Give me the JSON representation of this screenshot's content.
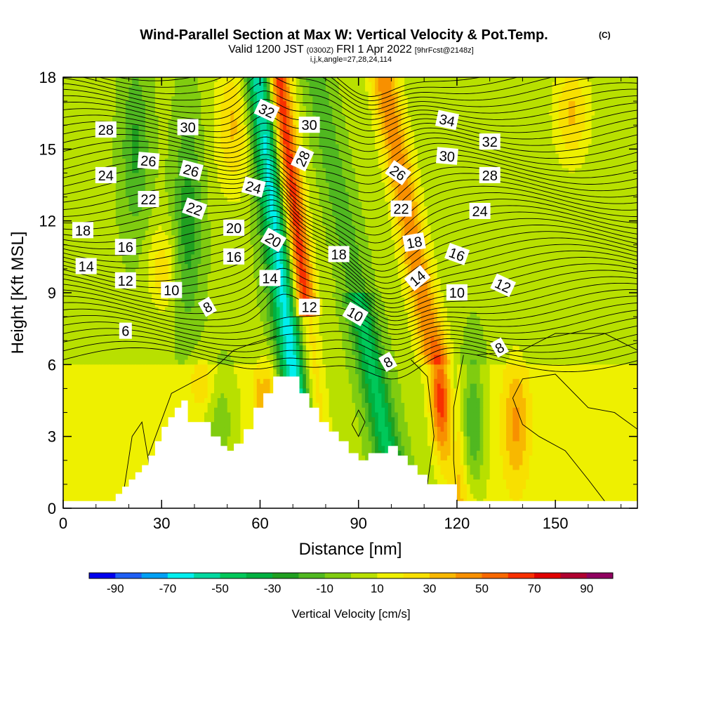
{
  "title": {
    "main": "Wind-Parallel Section at Max W: Vertical Velocity & Pot.Temp.",
    "copyright": "(C)",
    "valid_prefix": "Valid 1200 JST",
    "valid_utc": "(0300Z)",
    "valid_date": "FRI 1 Apr 2022",
    "forecast": "[9hrFcst@2148z]",
    "indices": "i,j,k,angle=27,28,24,114"
  },
  "chart_data": {
    "type": "heatmap",
    "xlabel": "Distance [nm]",
    "ylabel": "Height [Kft MSL]",
    "xlim": [
      0,
      175
    ],
    "ylim": [
      0,
      18
    ],
    "x_ticks": [
      0,
      30,
      60,
      90,
      120,
      150
    ],
    "y_ticks": [
      0,
      3,
      6,
      9,
      12,
      15,
      18
    ],
    "x_tick_labels": [
      "0",
      "30",
      "60",
      "90",
      "120",
      "150"
    ],
    "y_tick_labels": [
      "0",
      "3",
      "6",
      "9",
      "12",
      "15",
      "18"
    ],
    "colorbar": {
      "title": "Vertical Velocity [cm/s]",
      "tick_labels": [
        "-90",
        "-70",
        "-50",
        "-30",
        "-10",
        "10",
        "30",
        "50",
        "70",
        "90"
      ],
      "bins": [
        -100,
        -90,
        -80,
        -70,
        -60,
        -50,
        -40,
        -30,
        -20,
        -10,
        0,
        10,
        20,
        30,
        40,
        50,
        60,
        70,
        80,
        90,
        100
      ],
      "colors": [
        "#0000ee",
        "#1e5ff5",
        "#00a0f5",
        "#00eeee",
        "#00d8a0",
        "#00c85a",
        "#00b040",
        "#20a020",
        "#50b820",
        "#80cc10",
        "#b8e000",
        "#eef000",
        "#f8e000",
        "#f8b800",
        "#f89000",
        "#f86800",
        "#f83000",
        "#e00000",
        "#b00030",
        "#900060"
      ]
    },
    "terrain": {
      "x": [
        0,
        16,
        16,
        18,
        18,
        20,
        20,
        22,
        22,
        24,
        24,
        26,
        26,
        28,
        28,
        30,
        30,
        32,
        32,
        34,
        34,
        36,
        36,
        38,
        38,
        45,
        45,
        48,
        48,
        50,
        50,
        52,
        52,
        55,
        55,
        58,
        58,
        61,
        61,
        64,
        64,
        72,
        72,
        75,
        75,
        78,
        78,
        81,
        81,
        84,
        84,
        87,
        87,
        90,
        90,
        93,
        93,
        99,
        99,
        102,
        102,
        105,
        105,
        108,
        108,
        111,
        111,
        120,
        120,
        175
      ],
      "height_kft": [
        0.3,
        0.3,
        0.6,
        0.6,
        0.9,
        0.9,
        1.2,
        1.2,
        1.5,
        1.5,
        1.8,
        1.8,
        2.2,
        2.2,
        2.8,
        2.8,
        3.4,
        3.4,
        3.8,
        3.8,
        4.2,
        4.2,
        4.5,
        4.5,
        3.6,
        3.6,
        3.0,
        3.0,
        2.6,
        2.6,
        2.4,
        2.4,
        2.7,
        2.7,
        3.3,
        3.3,
        4.2,
        4.2,
        4.8,
        4.8,
        5.5,
        5.5,
        4.8,
        4.8,
        4.2,
        4.2,
        3.6,
        3.6,
        3.2,
        3.2,
        2.8,
        2.8,
        2.3,
        2.3,
        2.0,
        2.0,
        2.3,
        2.3,
        2.6,
        2.6,
        2.2,
        2.2,
        1.8,
        1.8,
        1.4,
        1.4,
        1.0,
        1.0,
        0.3,
        0.3
      ]
    },
    "isentrope_labels": [
      {
        "text": "28",
        "x": 13,
        "y": 15.8,
        "angle": 0
      },
      {
        "text": "30",
        "x": 38,
        "y": 15.9,
        "angle": 0
      },
      {
        "text": "32",
        "x": 62,
        "y": 16.6,
        "angle": 25
      },
      {
        "text": "30",
        "x": 75,
        "y": 16.0,
        "angle": 0
      },
      {
        "text": "34",
        "x": 117,
        "y": 16.2,
        "angle": 12
      },
      {
        "text": "26",
        "x": 26,
        "y": 14.5,
        "angle": 5
      },
      {
        "text": "26",
        "x": 39,
        "y": 14.1,
        "angle": 15
      },
      {
        "text": "28",
        "x": 73,
        "y": 14.6,
        "angle": -65
      },
      {
        "text": "32",
        "x": 130,
        "y": 15.3,
        "angle": 0
      },
      {
        "text": "30",
        "x": 117,
        "y": 14.7,
        "angle": 5
      },
      {
        "text": "24",
        "x": 13,
        "y": 13.9,
        "angle": 0
      },
      {
        "text": "26",
        "x": 102,
        "y": 14.0,
        "angle": 35
      },
      {
        "text": "28",
        "x": 130,
        "y": 13.9,
        "angle": 0
      },
      {
        "text": "24",
        "x": 58,
        "y": 13.4,
        "angle": 15
      },
      {
        "text": "22",
        "x": 26,
        "y": 12.9,
        "angle": 0
      },
      {
        "text": "22",
        "x": 40,
        "y": 12.5,
        "angle": 20
      },
      {
        "text": "22",
        "x": 103,
        "y": 12.5,
        "angle": 0
      },
      {
        "text": "24",
        "x": 127,
        "y": 12.4,
        "angle": 0
      },
      {
        "text": "20",
        "x": 52,
        "y": 11.7,
        "angle": 0
      },
      {
        "text": "18",
        "x": 6,
        "y": 11.6,
        "angle": 0
      },
      {
        "text": "20",
        "x": 64,
        "y": 11.2,
        "angle": 30
      },
      {
        "text": "18",
        "x": 107,
        "y": 11.1,
        "angle": -10
      },
      {
        "text": "16",
        "x": 19,
        "y": 10.9,
        "angle": 0
      },
      {
        "text": "16",
        "x": 52,
        "y": 10.5,
        "angle": 0
      },
      {
        "text": "18",
        "x": 84,
        "y": 10.6,
        "angle": 0
      },
      {
        "text": "16",
        "x": 120,
        "y": 10.6,
        "angle": 20
      },
      {
        "text": "14",
        "x": 7,
        "y": 10.1,
        "angle": 0
      },
      {
        "text": "14",
        "x": 63,
        "y": 9.6,
        "angle": 0
      },
      {
        "text": "14",
        "x": 108,
        "y": 9.6,
        "angle": -40
      },
      {
        "text": "12",
        "x": 19,
        "y": 9.5,
        "angle": 0
      },
      {
        "text": "12",
        "x": 134,
        "y": 9.3,
        "angle": 25
      },
      {
        "text": "10",
        "x": 33,
        "y": 9.1,
        "angle": 0
      },
      {
        "text": "10",
        "x": 120,
        "y": 9.0,
        "angle": 0
      },
      {
        "text": "8",
        "x": 44,
        "y": 8.4,
        "angle": -30
      },
      {
        "text": "12",
        "x": 75,
        "y": 8.4,
        "angle": 0
      },
      {
        "text": "10",
        "x": 89,
        "y": 8.1,
        "angle": 30
      },
      {
        "text": "6",
        "x": 19,
        "y": 7.4,
        "angle": 0
      },
      {
        "text": "8",
        "x": 133,
        "y": 6.7,
        "angle": -30
      },
      {
        "text": "8",
        "x": 99,
        "y": 6.1,
        "angle": -30
      }
    ]
  }
}
